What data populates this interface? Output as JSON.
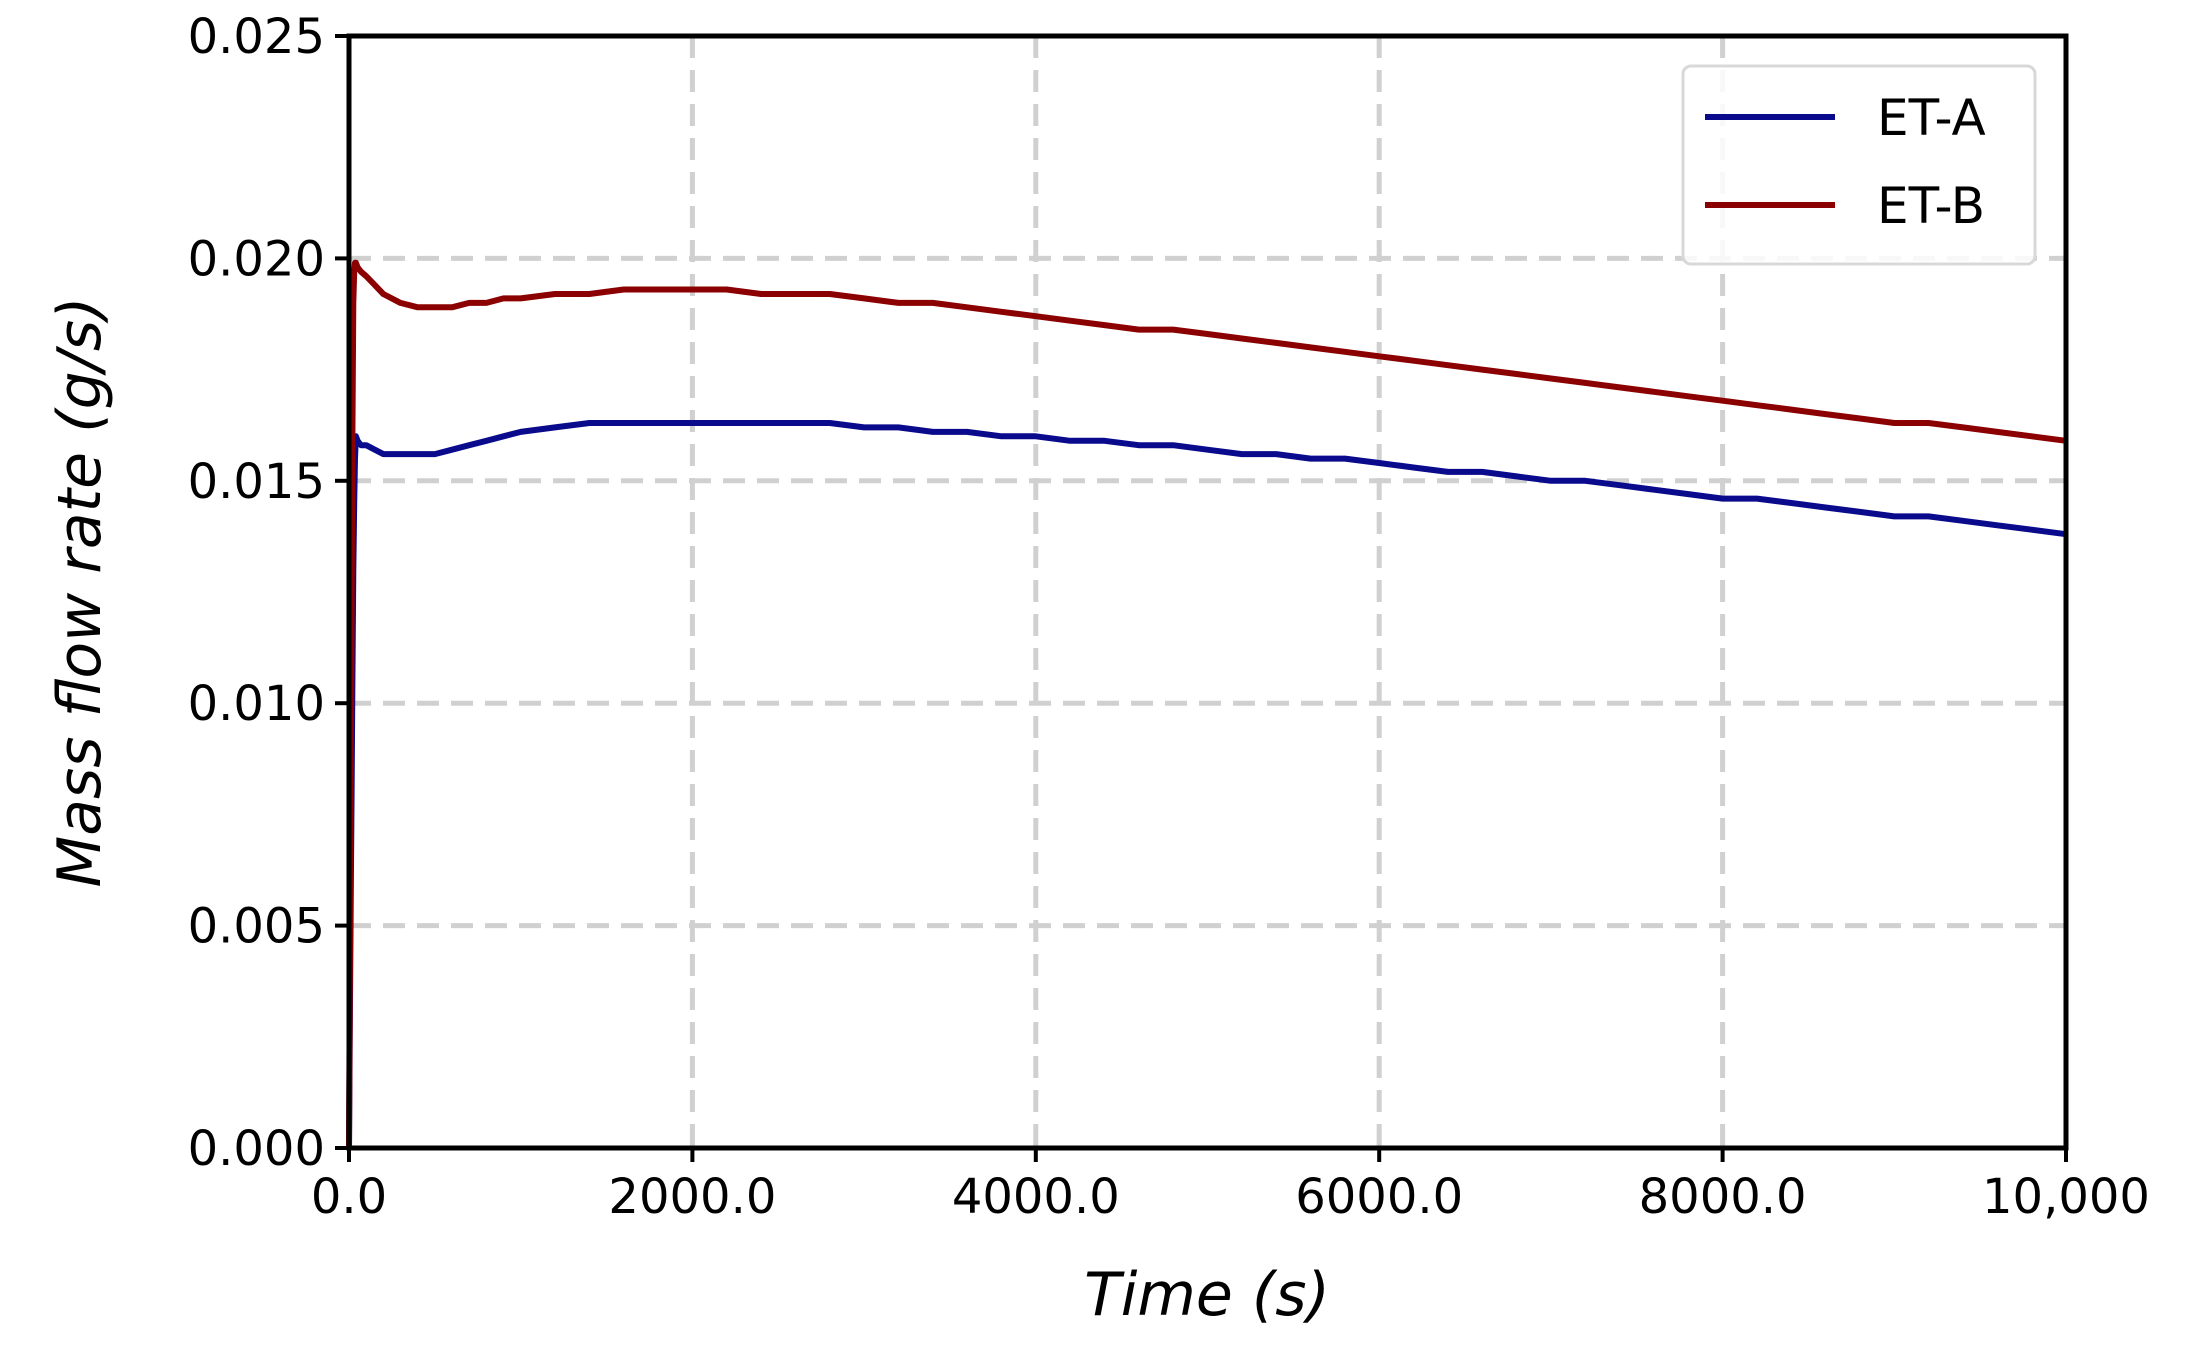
{
  "chart_data": {
    "type": "line",
    "title": "",
    "xlabel": "Time (s)",
    "ylabel": "Mass flow rate (g/s)",
    "xlim": [
      0,
      10000
    ],
    "ylim": [
      0,
      0.025
    ],
    "x_ticks": [
      0,
      2000,
      4000,
      6000,
      8000,
      10000
    ],
    "x_tick_labels": [
      "0.0",
      "2000.0",
      "4000.0",
      "6000.0",
      "8000.0",
      "10,000"
    ],
    "y_ticks": [
      0,
      0.005,
      0.01,
      0.015,
      0.02,
      0.025
    ],
    "y_tick_labels": [
      "0.000",
      "0.005",
      "0.010",
      "0.015",
      "0.020",
      "0.025"
    ],
    "grid": true,
    "legend_position": "top-right",
    "series": [
      {
        "name": "ET-A",
        "color": "#0a0a8c",
        "x": [
          0,
          5,
          10,
          15,
          20,
          25,
          30,
          35,
          40,
          50,
          70,
          100,
          150,
          200,
          300,
          400,
          500,
          600,
          700,
          800,
          900,
          1000,
          1200,
          1400,
          1600,
          1800,
          2000,
          2200,
          2400,
          2600,
          2800,
          3000,
          3200,
          3400,
          3600,
          3800,
          4000,
          4200,
          4400,
          4600,
          4800,
          5000,
          5200,
          5400,
          5600,
          5800,
          6000,
          6200,
          6400,
          6600,
          6800,
          7000,
          7200,
          7400,
          7600,
          7800,
          8000,
          8200,
          8400,
          8600,
          8800,
          9000,
          9200,
          9400,
          9600,
          9800,
          10000
        ],
        "y": [
          0.0,
          0.003,
          0.0055,
          0.008,
          0.0105,
          0.013,
          0.0145,
          0.0155,
          0.016,
          0.0159,
          0.0158,
          0.0158,
          0.0157,
          0.0156,
          0.0156,
          0.0156,
          0.0156,
          0.0157,
          0.0158,
          0.0159,
          0.016,
          0.0161,
          0.0162,
          0.0163,
          0.0163,
          0.0163,
          0.0163,
          0.0163,
          0.0163,
          0.0163,
          0.0163,
          0.0162,
          0.0162,
          0.0161,
          0.0161,
          0.016,
          0.016,
          0.0159,
          0.0159,
          0.0158,
          0.0158,
          0.0157,
          0.0156,
          0.0156,
          0.0155,
          0.0155,
          0.0154,
          0.0153,
          0.0152,
          0.0152,
          0.0151,
          0.015,
          0.015,
          0.0149,
          0.0148,
          0.0147,
          0.0146,
          0.0146,
          0.0145,
          0.0144,
          0.0143,
          0.0142,
          0.0142,
          0.0141,
          0.014,
          0.0139,
          0.0138
        ]
      },
      {
        "name": "ET-B",
        "color": "#8b0000",
        "x": [
          0,
          5,
          10,
          15,
          20,
          25,
          30,
          35,
          40,
          50,
          70,
          100,
          150,
          200,
          300,
          400,
          500,
          600,
          700,
          800,
          900,
          1000,
          1200,
          1400,
          1600,
          1800,
          2000,
          2200,
          2400,
          2600,
          2800,
          3000,
          3200,
          3400,
          3600,
          3800,
          4000,
          4200,
          4400,
          4600,
          4800,
          5000,
          5200,
          5400,
          5600,
          5800,
          6000,
          6200,
          6400,
          6600,
          6800,
          7000,
          7200,
          7400,
          7600,
          7800,
          8000,
          8200,
          8400,
          8600,
          8800,
          9000,
          9200,
          9400,
          9600,
          9800,
          10000
        ],
        "y": [
          0.0,
          0.004,
          0.008,
          0.012,
          0.016,
          0.019,
          0.0197,
          0.0199,
          0.0199,
          0.0198,
          0.0197,
          0.0196,
          0.0194,
          0.0192,
          0.019,
          0.0189,
          0.0189,
          0.0189,
          0.019,
          0.019,
          0.0191,
          0.0191,
          0.0192,
          0.0192,
          0.0193,
          0.0193,
          0.0193,
          0.0193,
          0.0192,
          0.0192,
          0.0192,
          0.0191,
          0.019,
          0.019,
          0.0189,
          0.0188,
          0.0187,
          0.0186,
          0.0185,
          0.0184,
          0.0184,
          0.0183,
          0.0182,
          0.0181,
          0.018,
          0.0179,
          0.0178,
          0.0177,
          0.0176,
          0.0175,
          0.0174,
          0.0173,
          0.0172,
          0.0171,
          0.017,
          0.0169,
          0.0168,
          0.0167,
          0.0166,
          0.0165,
          0.0164,
          0.0163,
          0.0163,
          0.0162,
          0.0161,
          0.016,
          0.0159
        ]
      }
    ]
  }
}
